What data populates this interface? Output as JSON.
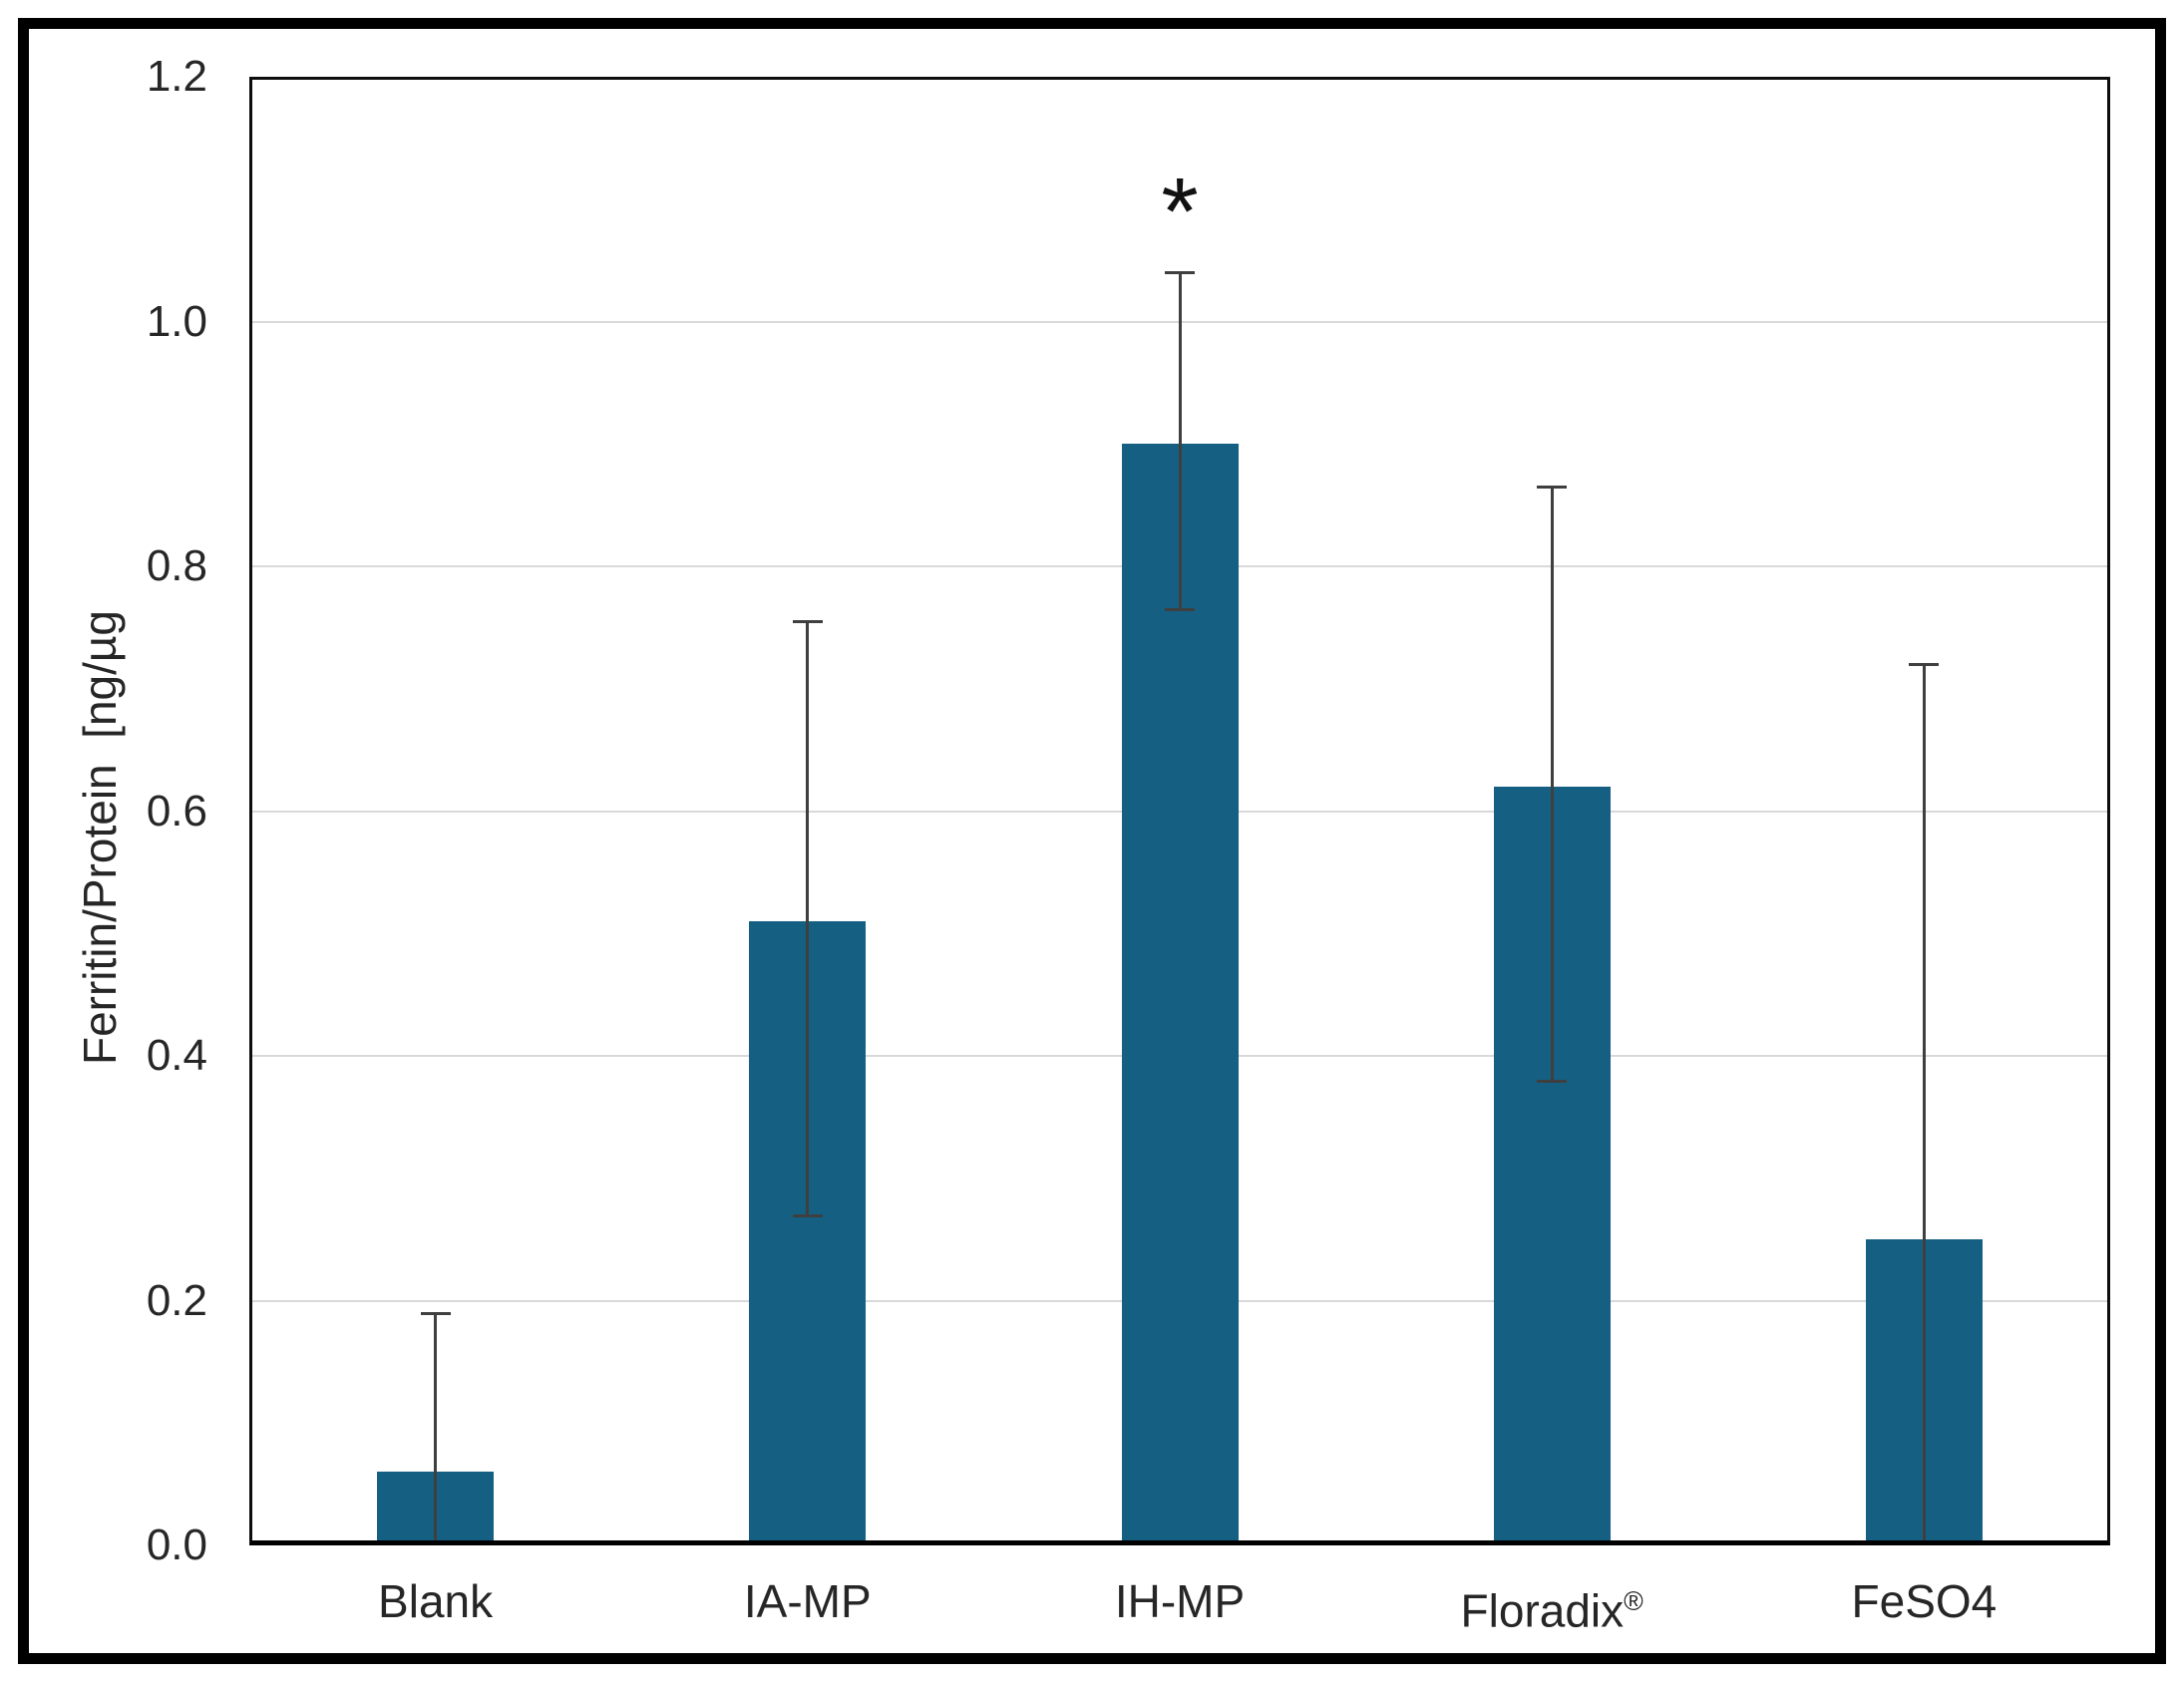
{
  "chart_data": {
    "type": "bar",
    "title": "",
    "xlabel": "",
    "ylabel": "Ferritin/Protein  [ng/µg",
    "ylim": [
      0,
      1.2
    ],
    "grid": "horizontal",
    "legend": "none",
    "yticks": [
      {
        "label": "0.0",
        "value": 0.0
      },
      {
        "label": "0.2",
        "value": 0.2
      },
      {
        "label": "0.4",
        "value": 0.4
      },
      {
        "label": "0.6",
        "value": 0.6
      },
      {
        "label": "0.8",
        "value": 0.8
      },
      {
        "label": "1.0",
        "value": 1.0
      },
      {
        "label": "1.2",
        "value": 1.2
      }
    ],
    "categories": [
      "Blank",
      "IA-MP",
      "IH-MP",
      "Floradix®",
      "FeSO4"
    ],
    "values": [
      0.06,
      0.51,
      0.9,
      0.62,
      0.25
    ],
    "error_bars": {
      "upper": [
        0.19,
        0.755,
        1.04,
        0.865,
        0.72
      ],
      "lower": [
        0.0,
        0.27,
        0.765,
        0.38,
        0.0
      ],
      "lower_cap_visible": [
        false,
        true,
        true,
        true,
        false
      ]
    },
    "annotations": [
      {
        "text": "*",
        "category_index": 2,
        "y": 1.1,
        "meaning": "significance marker"
      }
    ]
  },
  "colors": {
    "bar_fill": "#156082",
    "gridline": "#d9d9d9",
    "error_bar": "#3f3f3f",
    "plot_border": "#0d0d0d",
    "axis_line": "#000000",
    "text": "#262626",
    "outer_frame": "#000000",
    "background": "#ffffff"
  }
}
